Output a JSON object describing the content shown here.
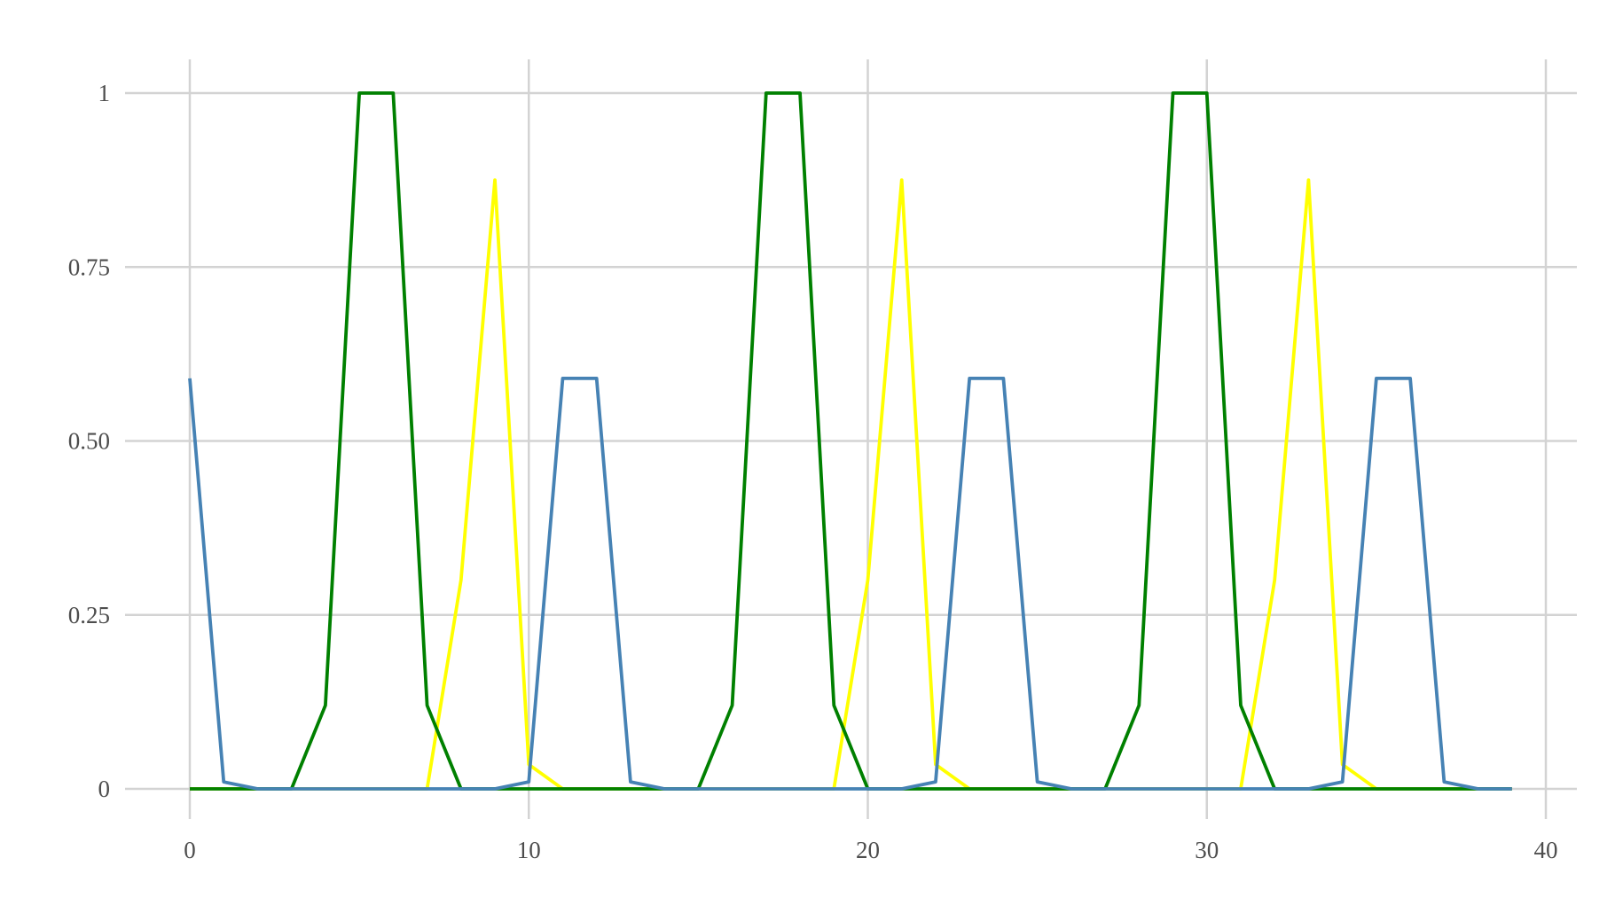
{
  "chart_data": {
    "type": "line",
    "title": "",
    "xlabel": "",
    "ylabel": "",
    "xlim": [
      -2,
      41
    ],
    "ylim": [
      -0.05,
      1.05
    ],
    "x_ticks": [
      0,
      10,
      20,
      30,
      40
    ],
    "x_tick_labels": [
      "0",
      "10",
      "20",
      "30",
      "40"
    ],
    "y_ticks": [
      0,
      0.25,
      0.5,
      0.75,
      1
    ],
    "y_tick_labels": [
      "0",
      "0.25",
      "0.50",
      "0.75",
      "1"
    ],
    "grid": true,
    "legend": "none",
    "x": [
      0,
      1,
      2,
      3,
      4,
      5,
      6,
      7,
      8,
      9,
      10,
      11,
      12,
      13,
      14,
      15,
      16,
      17,
      18,
      19,
      20,
      21,
      22,
      23,
      24,
      25,
      26,
      27,
      28,
      29,
      30,
      31,
      32,
      33,
      34,
      35,
      36,
      37,
      38,
      39
    ],
    "series": [
      {
        "color": "#ffff00",
        "values": [
          0,
          0,
          0,
          0,
          0,
          0,
          0,
          0,
          0.3,
          0.875,
          0.035,
          0,
          0,
          0,
          0,
          0,
          0,
          0,
          0,
          0,
          0.3,
          0.875,
          0.035,
          0,
          0,
          0,
          0,
          0,
          0,
          0,
          0,
          0,
          0.3,
          0.875,
          0.035,
          0,
          0,
          0,
          0,
          0
        ]
      },
      {
        "color": "#008000",
        "values": [
          0,
          0,
          0,
          0,
          0.12,
          1,
          1,
          0.12,
          0,
          0,
          0,
          0,
          0,
          0,
          0,
          0,
          0.12,
          1,
          1,
          0.12,
          0,
          0,
          0,
          0,
          0,
          0,
          0,
          0,
          0.12,
          1,
          1,
          0.12,
          0,
          0,
          0,
          0,
          0,
          0,
          0,
          0
        ]
      },
      {
        "color": "#4682b4",
        "values": [
          0.59,
          0.01,
          0,
          0,
          0,
          0,
          0,
          0,
          0,
          0,
          0.01,
          0.59,
          0.59,
          0.01,
          0,
          0,
          0,
          0,
          0,
          0,
          0,
          0,
          0.01,
          0.59,
          0.59,
          0.01,
          0,
          0,
          0,
          0,
          0,
          0,
          0,
          0,
          0.01,
          0.59,
          0.59,
          0.01,
          0,
          0
        ]
      }
    ]
  }
}
